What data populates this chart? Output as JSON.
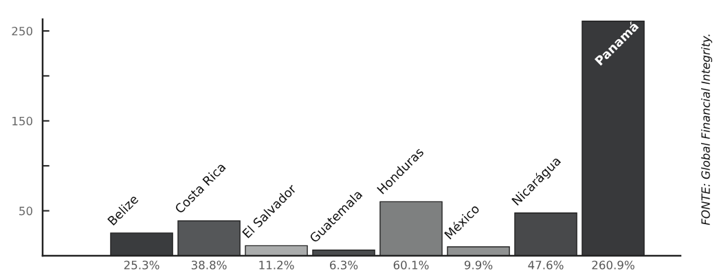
{
  "chart_data": {
    "type": "bar",
    "categories": [
      "Belize",
      "Costa Rica",
      "El Salvador",
      "Guatemala",
      "Honduras",
      "México",
      "Nicarágua",
      "Panamá"
    ],
    "values": [
      25.3,
      38.8,
      11.2,
      6.3,
      60.1,
      9.9,
      47.6,
      260.9
    ],
    "colors": [
      "#3a3c3e",
      "#555759",
      "#aaacac",
      "#4a4c4e",
      "#7e8080",
      "#909292",
      "#48494b",
      "#38393b"
    ],
    "value_labels": [
      "25.3%",
      "38.8%",
      "11.2%",
      "6.3%",
      "60.1%",
      "9.9%",
      "47.6%",
      "260.9%"
    ],
    "ylim": [
      0,
      263
    ],
    "yticks": [
      {
        "value": 50,
        "label": "50"
      },
      {
        "value": 100,
        "label": null
      },
      {
        "value": 150,
        "label": "150"
      },
      {
        "value": 200,
        "label": null
      },
      {
        "value": 250,
        "label": "250"
      }
    ],
    "annotations": [
      "FONTE: Global Financial Integrity."
    ],
    "grid": false,
    "legend": false
  }
}
